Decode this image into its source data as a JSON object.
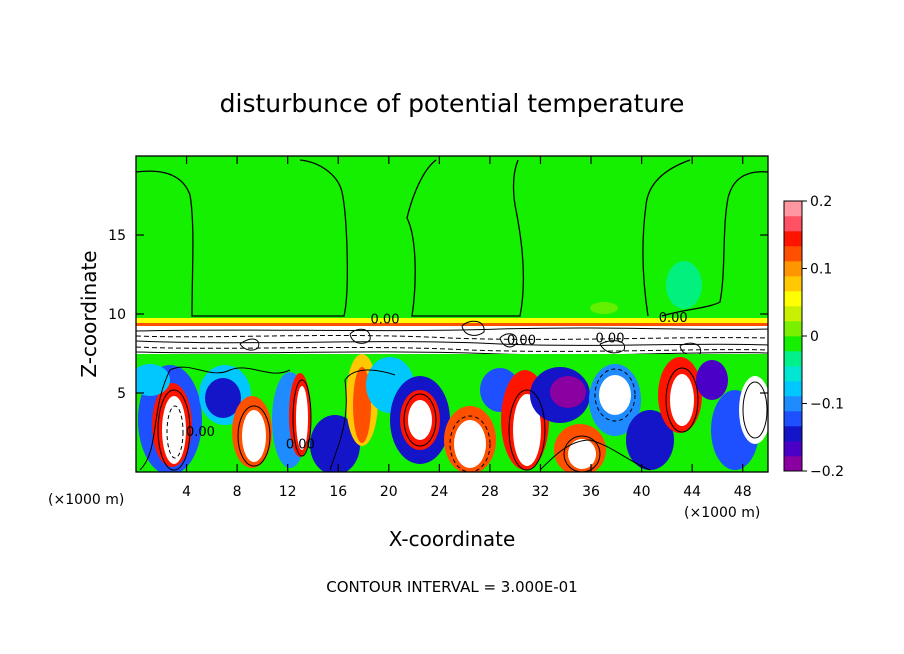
{
  "chart_data": {
    "type": "heatmap",
    "title": "disturbunce of potential temperature",
    "xlabel": "X-coordinate",
    "ylabel": "Z-coordinate",
    "x_unit": "(×1000 m)",
    "x_unit_right": "(×1000 m)",
    "footer": "CONTOUR INTERVAL = 3.000E-01",
    "xlim": [
      0,
      50
    ],
    "ylim": [
      0,
      20
    ],
    "x_ticks": [
      4,
      8,
      12,
      16,
      20,
      24,
      28,
      32,
      36,
      40,
      44,
      48
    ],
    "y_ticks": [
      5,
      10,
      15
    ],
    "colorbar": {
      "range": [
        -0.2,
        0.2
      ],
      "ticks": [
        {
          "value": 0.2,
          "label": "0.2"
        },
        {
          "value": 0.1,
          "label": "0.1"
        },
        {
          "value": 0,
          "label": "0"
        },
        {
          "value": -0.1,
          "label": "−0.1"
        },
        {
          "value": -0.2,
          "label": "−0.2"
        }
      ],
      "colors": [
        "#8b00a0",
        "#4b00c8",
        "#1414c8",
        "#1e50ff",
        "#1e8cff",
        "#00c8ff",
        "#00e6d2",
        "#00f08c",
        "#14f000",
        "#78f000",
        "#c8f000",
        "#ffff00",
        "#ffc800",
        "#ff9600",
        "#ff5000",
        "#ff1400",
        "#ff5064",
        "#ff96a0"
      ]
    },
    "contour_labels": [
      {
        "text": "0.00",
        "x": 19.7,
        "z": 9.7
      },
      {
        "text": "0.00",
        "x": 42.5,
        "z": 9.8
      },
      {
        "text": "0.00",
        "x": 5.1,
        "z": 2.6
      },
      {
        "text": "0.00",
        "x": 13.0,
        "z": 1.8
      },
      {
        "text": "0.00",
        "x": 30.5,
        "z": 8.4
      },
      {
        "text": "0.00",
        "x": 37.5,
        "z": 8.5
      }
    ]
  }
}
